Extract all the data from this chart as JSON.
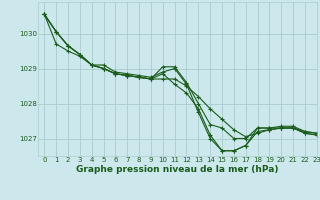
{
  "background_color": "#cce8ec",
  "grid_color": "#aacccc",
  "line_color": "#1a5c1a",
  "title": "Graphe pression niveau de la mer (hPa)",
  "xlim": [
    -0.5,
    23
  ],
  "ylim": [
    1026.5,
    1030.9
  ],
  "yticks": [
    1027,
    1028,
    1029,
    1030
  ],
  "xtick_labels": [
    "0",
    "1",
    "2",
    "3",
    "4",
    "5",
    "6",
    "7",
    "8",
    "9",
    "10",
    "11",
    "12",
    "13",
    "14",
    "15",
    "16",
    "17",
    "18",
    "19",
    "20",
    "21",
    "22",
    "23"
  ],
  "series": [
    [
      1030.55,
      1030.05,
      1029.65,
      1029.4,
      1029.1,
      1029.1,
      1028.9,
      1028.85,
      1028.8,
      1028.75,
      1028.9,
      1029.0,
      1028.55,
      1027.75,
      1027.0,
      1026.65,
      1026.65,
      1026.8,
      1027.3,
      1027.3,
      1027.35,
      1027.35,
      1027.2,
      1027.15
    ],
    [
      1030.55,
      1030.05,
      1029.65,
      1029.4,
      1029.1,
      1029.0,
      1028.85,
      1028.8,
      1028.75,
      1028.7,
      1028.85,
      1028.55,
      1028.3,
      1027.85,
      1027.1,
      1026.65,
      1026.65,
      1026.8,
      1027.2,
      1027.25,
      1027.3,
      1027.3,
      1027.15,
      1027.1
    ],
    [
      1030.55,
      1029.7,
      1029.5,
      1029.35,
      1029.1,
      1029.0,
      1028.85,
      1028.8,
      1028.75,
      1028.7,
      1029.05,
      1029.05,
      1028.6,
      1028.0,
      1027.4,
      1027.3,
      1027.0,
      1027.0,
      1027.3,
      1027.3,
      1027.3,
      1027.3,
      1027.15,
      1027.1
    ],
    [
      1030.55,
      1030.05,
      1029.65,
      1029.4,
      1029.1,
      1029.0,
      1028.85,
      1028.8,
      1028.75,
      1028.7,
      1028.7,
      1028.7,
      1028.5,
      1028.2,
      1027.85,
      1027.55,
      1027.25,
      1027.05,
      1027.15,
      1027.25,
      1027.3,
      1027.3,
      1027.2,
      1027.15
    ]
  ],
  "marker": "+",
  "marker_size": 3,
  "marker_edge_width": 0.8,
  "line_width": 0.8,
  "title_fontsize": 6.5,
  "tick_fontsize": 5.0,
  "xlabel_pad": 1
}
